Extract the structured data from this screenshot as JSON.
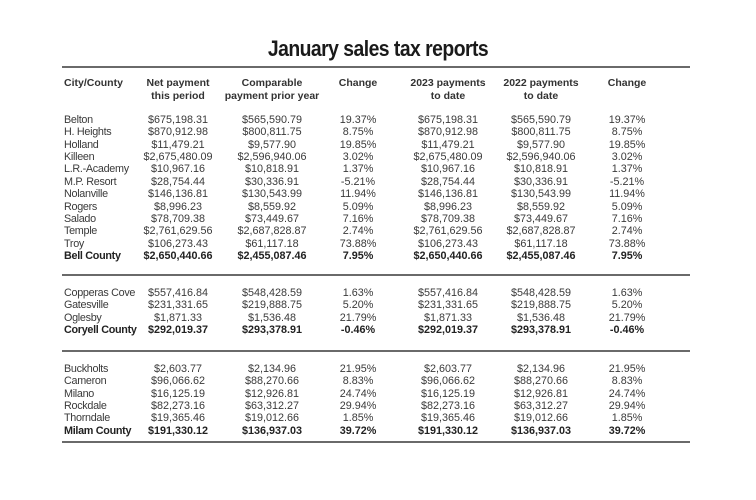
{
  "title": "January sales tax reports",
  "headers": [
    "City/County",
    "Net payment\nthis period",
    "Comparable\npayment prior year",
    "Change",
    "2023 payments\nto date",
    "2022 payments\nto date",
    "Change"
  ],
  "sections": [
    {
      "rows": [
        [
          "Belton",
          "$675,198.31",
          "$565,590.79",
          "19.37%",
          "$675,198.31",
          "$565,590.79",
          "19.37%"
        ],
        [
          "H. Heights",
          "$870,912.98",
          "$800,811.75",
          "8.75%",
          "$870,912.98",
          "$800,811.75",
          "8.75%"
        ],
        [
          "Holland",
          "$11,479.21",
          "$9,577.90",
          "19.85%",
          "$11,479.21",
          "$9,577.90",
          "19.85%"
        ],
        [
          "Killeen",
          "$2,675,480.09",
          "$2,596,940.06",
          "3.02%",
          "$2,675,480.09",
          "$2,596,940.06",
          "3.02%"
        ],
        [
          "L.R.-Academy",
          "$10,967.16",
          "$10,818.91",
          "1.37%",
          "$10,967.16",
          "$10,818.91",
          "1.37%"
        ],
        [
          "M.P. Resort",
          "$28,754.44",
          "$30,336.91",
          "-5.21%",
          "$28,754.44",
          "$30,336.91",
          "-5.21%"
        ],
        [
          "Nolanville",
          "$146,136.81",
          "$130,543.99",
          "11.94%",
          "$146,136.81",
          "$130,543.99",
          "11.94%"
        ],
        [
          "Rogers",
          "$8,996.23",
          "$8,559.92",
          "5.09%",
          "$8,996.23",
          "$8,559.92",
          "5.09%"
        ],
        [
          "Salado",
          "$78,709.38",
          "$73,449.67",
          "7.16%",
          "$78,709.38",
          "$73,449.67",
          "7.16%"
        ],
        [
          "Temple",
          "$2,761,629.56",
          "$2,687,828.87",
          "2.74%",
          "$2,761,629.56",
          "$2,687,828.87",
          "2.74%"
        ],
        [
          "Troy",
          "$106,273.43",
          "$61,117.18",
          "73.88%",
          "$106,273.43",
          "$61,117.18",
          "73.88%"
        ]
      ],
      "total": [
        "Bell County",
        "$2,650,440.66",
        "$2,455,087.46",
        "7.95%",
        "$2,650,440.66",
        "$2,455,087.46",
        "7.95%"
      ]
    },
    {
      "rows": [
        [
          "Copperas Cove",
          "$557,416.84",
          "$548,428.59",
          "1.63%",
          "$557,416.84",
          "$548,428.59",
          "1.63%"
        ],
        [
          "Gatesville",
          "$231,331.65",
          "$219,888.75",
          "5.20%",
          "$231,331.65",
          "$219,888.75",
          "5.20%"
        ],
        [
          "Oglesby",
          "$1,871.33",
          "$1,536.48",
          "21.79%",
          "$1,871.33",
          "$1,536.48",
          "21.79%"
        ]
      ],
      "total": [
        "Coryell County",
        "$292,019.37",
        "$293,378.91",
        "-0.46%",
        "$292,019.37",
        "$293,378.91",
        "-0.46%"
      ]
    },
    {
      "rows": [
        [
          "Buckholts",
          "$2,603.77",
          "$2,134.96",
          "21.95%",
          "$2,603.77",
          "$2,134.96",
          "21.95%"
        ],
        [
          "Cameron",
          "$96,066.62",
          "$88,270.66",
          "8.83%",
          "$96,066.62",
          "$88,270.66",
          "8.83%"
        ],
        [
          "Milano",
          "$16,125.19",
          "$12,926.81",
          "24.74%",
          "$16,125.19",
          "$12,926.81",
          "24.74%"
        ],
        [
          "Rockdale",
          "$82,273.16",
          "$63,312.27",
          "29.94%",
          "$82,273.16",
          "$63,312.27",
          "29.94%"
        ],
        [
          "Thorndale",
          "$19,365.46",
          "$19,012.66",
          "1.85%",
          "$19,365.46",
          "$19,012.66",
          "1.85%"
        ]
      ],
      "total": [
        "Milam County",
        "$191,330.12",
        "$136,937.03",
        "39.72%",
        "$191,330.12",
        "$136,937.03",
        "39.72%"
      ]
    }
  ]
}
